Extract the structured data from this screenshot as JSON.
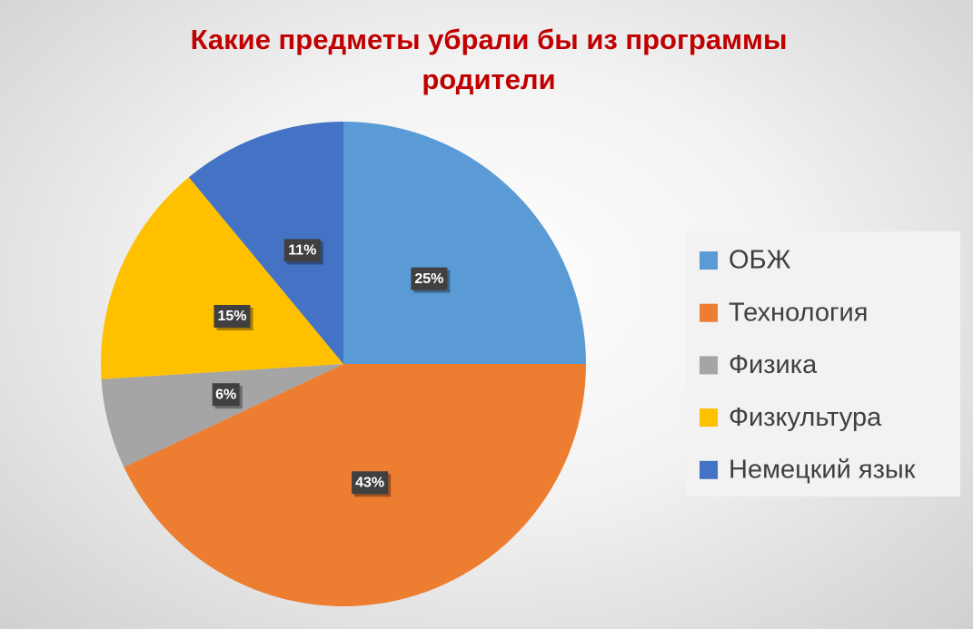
{
  "chart_data": {
    "type": "pie",
    "title": "Какие предметы убрали бы из программы родители",
    "categories": [
      "ОБЖ",
      "Технология",
      "Физика",
      "Физкультура",
      "Немецкий язык"
    ],
    "values": [
      25,
      43,
      6,
      15,
      11
    ],
    "value_labels": [
      "25%",
      "43%",
      "6%",
      "15%",
      "11%"
    ],
    "colors": [
      "#5b9bd5",
      "#ed7d31",
      "#a5a5a5",
      "#ffc000",
      "#4472c4"
    ],
    "legend": "right"
  }
}
